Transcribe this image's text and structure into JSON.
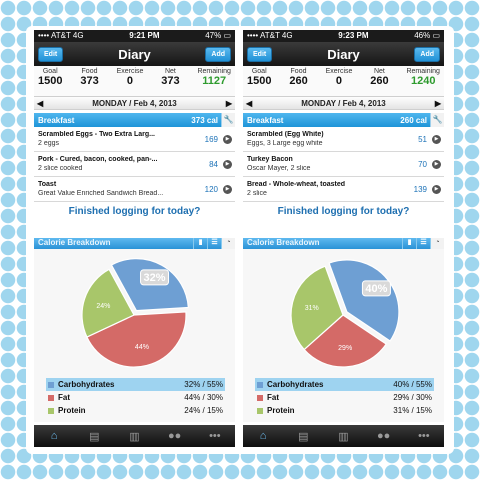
{
  "colors": {
    "carb": "#6e9fd3",
    "fat": "#d46a67",
    "protein": "#a8c66a",
    "accent": "#1e94d8",
    "remaining": "#2e9b2e"
  },
  "screens": [
    {
      "status": {
        "carrier": "•••• AT&T  4G",
        "time": "9:21 PM",
        "battery": "47% ▭"
      },
      "nav": {
        "edit": "Edit",
        "title": "Diary",
        "add": "Add"
      },
      "summary": [
        {
          "label": "Goal",
          "value": "1500"
        },
        {
          "label": "Food",
          "value": "373"
        },
        {
          "label": "Exercise",
          "value": "0"
        },
        {
          "label": "Net",
          "value": "373"
        },
        {
          "label": "Remaining",
          "value": "1127"
        }
      ],
      "date": "MONDAY / Feb 4, 2013",
      "meal": {
        "name": "Breakfast",
        "calories": "373 cal"
      },
      "entries": [
        {
          "name": "Scrambled Eggs - Two Extra Larg...",
          "detail": "2 eggs",
          "calories": "169"
        },
        {
          "name": "Pork - Cured, bacon, cooked, pan-...",
          "detail": "2 slice cooked",
          "calories": "84"
        },
        {
          "name": "Toast",
          "detail": "Great Value Enriched Sandwich Bread...",
          "calories": "120"
        }
      ],
      "finished": "Finished logging for today?"
    },
    {
      "status": {
        "carrier": "•••• AT&T  4G",
        "time": "9:23 PM",
        "battery": "46% ▭"
      },
      "nav": {
        "edit": "Edit",
        "title": "Diary",
        "add": "Add"
      },
      "summary": [
        {
          "label": "Goal",
          "value": "1500"
        },
        {
          "label": "Food",
          "value": "260"
        },
        {
          "label": "Exercise",
          "value": "0"
        },
        {
          "label": "Net",
          "value": "260"
        },
        {
          "label": "Remaining",
          "value": "1240"
        }
      ],
      "date": "MONDAY / Feb 4, 2013",
      "meal": {
        "name": "Breakfast",
        "calories": "260 cal"
      },
      "entries": [
        {
          "name": "Scrambled (Egg White)",
          "detail": "Eggs, 3 Large egg white",
          "calories": "51"
        },
        {
          "name": "Turkey Bacon",
          "detail": "Oscar Mayer, 2 slice",
          "calories": "70"
        },
        {
          "name": "Bread - Whole-wheat, toasted",
          "detail": "2 slice",
          "calories": "139"
        }
      ],
      "finished": "Finished logging for today?"
    }
  ],
  "breakdowns": [
    {
      "header": "Calorie Breakdown",
      "slices": [
        {
          "name": "Carbohydrates",
          "percent": 32,
          "label": "32%",
          "legend": "32% / 55%"
        },
        {
          "name": "Fat",
          "percent": 44,
          "label": "44%",
          "legend": "44% / 30%"
        },
        {
          "name": "Protein",
          "percent": 24,
          "label": "24%",
          "legend": "24% / 15%"
        }
      ]
    },
    {
      "header": "Calorie Breakdown",
      "slices": [
        {
          "name": "Carbohydrates",
          "percent": 40,
          "label": "40%",
          "legend": "40% / 55%"
        },
        {
          "name": "Fat",
          "percent": 29,
          "label": "29%",
          "legend": "29% / 30%"
        },
        {
          "name": "Protein",
          "percent": 31,
          "label": "31%",
          "legend": "31% / 15%"
        }
      ]
    }
  ],
  "tabs": [
    {
      "icon": "home-icon",
      "glyph": "⌂"
    },
    {
      "icon": "diary-icon",
      "glyph": "▤"
    },
    {
      "icon": "progress-icon",
      "glyph": "▥"
    },
    {
      "icon": "friends-icon",
      "glyph": "●●"
    },
    {
      "icon": "more-icon",
      "glyph": "•••"
    }
  ]
}
